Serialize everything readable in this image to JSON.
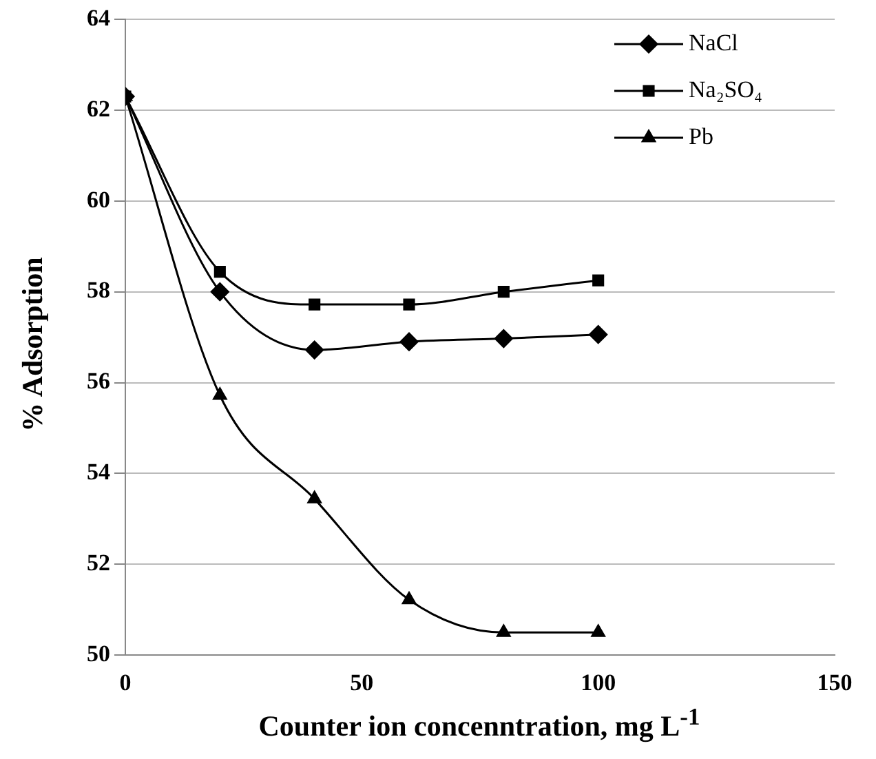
{
  "chart_data": {
    "type": "line",
    "xlabel": "Counter ion concenntration, mg L$^{-1}$",
    "ylabel": "% Adsorption",
    "x": [
      0,
      20,
      40,
      60,
      80,
      100
    ],
    "series": [
      {
        "name": "NaCl",
        "color": "#000000",
        "marker": "diamond",
        "values": [
          62.3,
          58.0,
          56.72,
          56.9,
          56.97,
          57.06
        ]
      },
      {
        "name": "Na₂SO₄",
        "color": "#000000",
        "marker": "square",
        "values": [
          62.3,
          58.44,
          57.72,
          57.72,
          58.0,
          58.25
        ]
      },
      {
        "name": "Pb",
        "color": "#000000",
        "marker": "triangle",
        "values": [
          62.3,
          55.72,
          53.44,
          51.22,
          50.5,
          50.5
        ]
      }
    ],
    "xlim": [
      0,
      150
    ],
    "xticks": [
      0,
      50,
      100,
      150
    ],
    "ylim": [
      50,
      64
    ],
    "yticks": [
      50,
      52,
      54,
      56,
      58,
      60,
      62,
      64
    ],
    "grid": "y",
    "legend": "top right",
    "line_style": "solid"
  }
}
